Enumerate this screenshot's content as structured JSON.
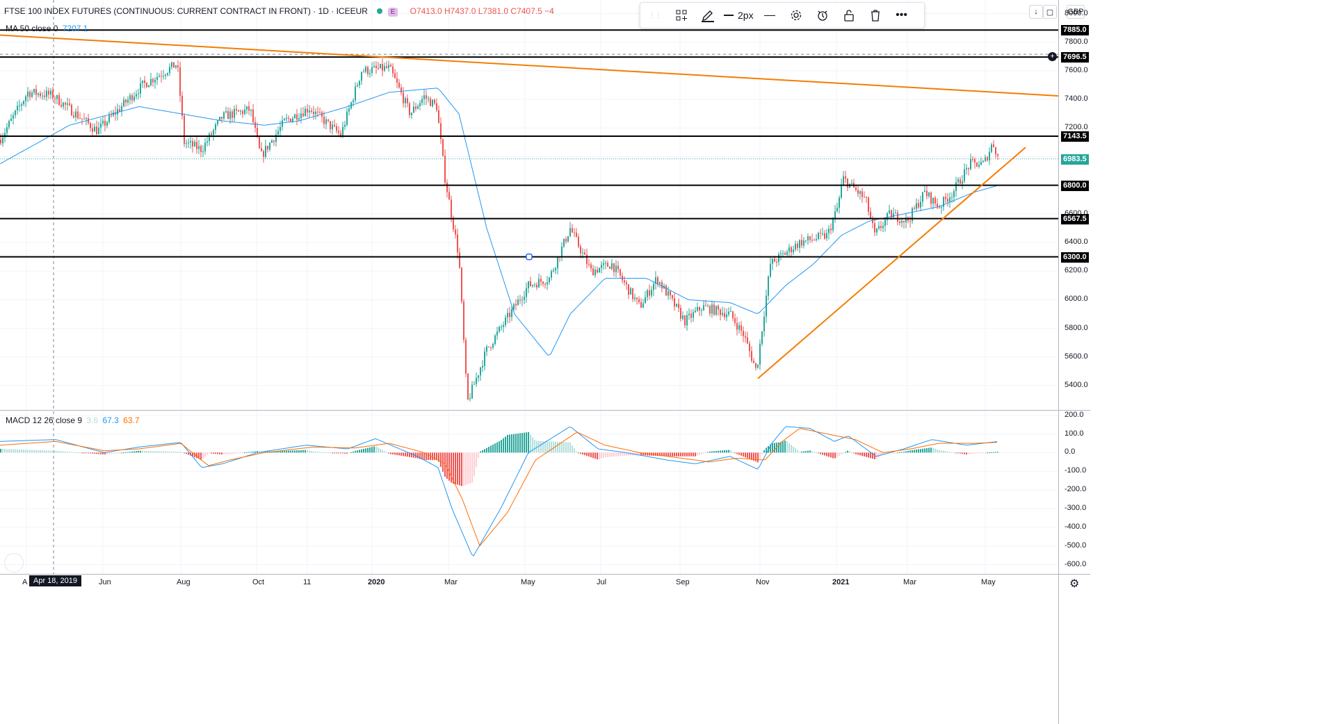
{
  "legend": {
    "symbol": "FTSE 100 INDEX FUTURES (CONTINUOUS: CURRENT CONTRACT IN FRONT) · 1D · ICEEUR",
    "badge": "E",
    "ohlc": "O7413.0 H7437.0 L7381.0 C7407.5 −4",
    "ma_label": "MA 50 close 0",
    "ma_value": "7207.1",
    "macd_label": "MACD 12 26 close 9",
    "macd_hist": "3.6",
    "macd_line": "67.3",
    "macd_signal": "63.7"
  },
  "toolbar": {
    "width_label": "2px",
    "icons": [
      "drag-handle-icon",
      "templates-icon",
      "pencil-icon",
      "line-width-icon",
      "line-style-icon",
      "settings-icon",
      "alert-icon",
      "lock-icon",
      "trash-icon",
      "more-icon"
    ]
  },
  "currency": "GBP",
  "price_axis": {
    "ticks": [
      "8000.0",
      "7800.0",
      "7600.0",
      "7400.0",
      "7200.0",
      "6600.0",
      "6400.0",
      "6200.0",
      "6000.0",
      "5800.0",
      "5600.0",
      "5400.0"
    ],
    "tick_values": [
      8000,
      7800,
      7600,
      7400,
      7200,
      6600,
      6400,
      6200,
      6000,
      5800,
      5600,
      5400
    ],
    "levels": [
      {
        "label": "7885.0",
        "value": 7885
      },
      {
        "label": "7696.5",
        "value": 7696.5
      },
      {
        "label": "7143.5",
        "value": 7143.5
      },
      {
        "label": "6800.0",
        "value": 6800
      },
      {
        "label": "6567.5",
        "value": 6567.5
      },
      {
        "label": "6300.0",
        "value": 6300
      }
    ],
    "last_price": {
      "label": "6983.5",
      "value": 6983.5
    }
  },
  "macd_axis": {
    "ticks": [
      "200.0",
      "100.0",
      "0.0",
      "-100.0",
      "-200.0",
      "-300.0",
      "-400.0",
      "-500.0",
      "-600.0"
    ],
    "tick_values": [
      200,
      100,
      0,
      -100,
      -200,
      -300,
      -400,
      -500,
      -600
    ]
  },
  "time_axis": {
    "labels": [
      "A",
      "Jun",
      "Aug",
      "Oct",
      "11",
      "2020",
      "Mar",
      "May",
      "Jul",
      "Sep",
      "Nov",
      "2021",
      "Mar",
      "May"
    ],
    "crosshair_label": "Apr 18, 2019"
  },
  "colors": {
    "up": "#26a69a",
    "down": "#ef5350",
    "ma": "#2196f3",
    "trend": "#f57c00",
    "macd_line": "#2196f3",
    "signal_line": "#ff6d00",
    "level": "#000000",
    "last": "#26a69a"
  },
  "chart_data": {
    "type": "candlestick",
    "price_range": [
      5230,
      8095
    ],
    "macd_range": [
      -650,
      225
    ],
    "trend_lines": [
      {
        "from": [
          "2019-03",
          "7850"
        ],
        "to": [
          "2021-05",
          "7420"
        ]
      },
      {
        "from": [
          "2020-10",
          "5450"
        ],
        "to": [
          "2021-05",
          "7065"
        ]
      }
    ],
    "anchors": [
      [
        0,
        7120
      ],
      [
        40,
        7450
      ],
      [
        75,
        7430
      ],
      [
        140,
        7180
      ],
      [
        205,
        7500
      ],
      [
        255,
        7650
      ],
      [
        265,
        7100
      ],
      [
        290,
        7050
      ],
      [
        320,
        7280
      ],
      [
        360,
        7330
      ],
      [
        375,
        7000
      ],
      [
        410,
        7250
      ],
      [
        445,
        7340
      ],
      [
        490,
        7150
      ],
      [
        520,
        7600
      ],
      [
        560,
        7620
      ],
      [
        590,
        7300
      ],
      [
        610,
        7420
      ],
      [
        628,
        7350
      ],
      [
        640,
        6850
      ],
      [
        660,
        6300
      ],
      [
        672,
        5280
      ],
      [
        700,
        5650
      ],
      [
        760,
        6100
      ],
      [
        790,
        6150
      ],
      [
        820,
        6500
      ],
      [
        850,
        6200
      ],
      [
        880,
        6250
      ],
      [
        920,
        5950
      ],
      [
        945,
        6150
      ],
      [
        985,
        5850
      ],
      [
        1010,
        5950
      ],
      [
        1050,
        5900
      ],
      [
        1070,
        5750
      ],
      [
        1088,
        5500
      ],
      [
        1108,
        6250
      ],
      [
        1150,
        6400
      ],
      [
        1190,
        6450
      ],
      [
        1205,
        6650
      ],
      [
        1212,
        6850
      ],
      [
        1245,
        6700
      ],
      [
        1258,
        6450
      ],
      [
        1280,
        6600
      ],
      [
        1305,
        6550
      ],
      [
        1330,
        6750
      ],
      [
        1350,
        6650
      ],
      [
        1370,
        6750
      ],
      [
        1395,
        6950
      ],
      [
        1415,
        6950
      ],
      [
        1428,
        7100
      ],
      [
        1436,
        6985
      ]
    ],
    "ma_anchors": [
      [
        0,
        6950
      ],
      [
        100,
        7220
      ],
      [
        200,
        7350
      ],
      [
        260,
        7300
      ],
      [
        320,
        7250
      ],
      [
        380,
        7220
      ],
      [
        430,
        7250
      ],
      [
        500,
        7350
      ],
      [
        560,
        7450
      ],
      [
        630,
        7480
      ],
      [
        660,
        7300
      ],
      [
        700,
        6500
      ],
      [
        740,
        5900
      ],
      [
        790,
        5600
      ],
      [
        820,
        5900
      ],
      [
        870,
        6150
      ],
      [
        930,
        6150
      ],
      [
        990,
        6000
      ],
      [
        1050,
        5980
      ],
      [
        1090,
        5900
      ],
      [
        1130,
        6100
      ],
      [
        1170,
        6250
      ],
      [
        1210,
        6450
      ],
      [
        1250,
        6550
      ],
      [
        1300,
        6600
      ],
      [
        1350,
        6650
      ],
      [
        1400,
        6750
      ],
      [
        1436,
        6800
      ]
    ],
    "macd_anchors": [
      [
        0,
        60
      ],
      [
        80,
        70
      ],
      [
        150,
        0
      ],
      [
        200,
        30
      ],
      [
        260,
        55
      ],
      [
        290,
        -80
      ],
      [
        320,
        -60
      ],
      [
        370,
        0
      ],
      [
        440,
        40
      ],
      [
        500,
        20
      ],
      [
        540,
        75
      ],
      [
        600,
        -20
      ],
      [
        630,
        -80
      ],
      [
        650,
        -300
      ],
      [
        680,
        -560
      ],
      [
        720,
        -300
      ],
      [
        760,
        0
      ],
      [
        820,
        140
      ],
      [
        860,
        20
      ],
      [
        900,
        0
      ],
      [
        960,
        -40
      ],
      [
        1000,
        -60
      ],
      [
        1050,
        -20
      ],
      [
        1090,
        -90
      ],
      [
        1110,
        50
      ],
      [
        1130,
        140
      ],
      [
        1165,
        130
      ],
      [
        1200,
        60
      ],
      [
        1220,
        90
      ],
      [
        1260,
        -20
      ],
      [
        1300,
        20
      ],
      [
        1340,
        70
      ],
      [
        1390,
        40
      ],
      [
        1436,
        60
      ]
    ],
    "signal_anchors": [
      [
        0,
        40
      ],
      [
        80,
        60
      ],
      [
        150,
        10
      ],
      [
        200,
        20
      ],
      [
        260,
        50
      ],
      [
        300,
        -70
      ],
      [
        330,
        -40
      ],
      [
        380,
        0
      ],
      [
        450,
        30
      ],
      [
        510,
        25
      ],
      [
        560,
        50
      ],
      [
        610,
        0
      ],
      [
        640,
        -60
      ],
      [
        665,
        -250
      ],
      [
        690,
        -500
      ],
      [
        730,
        -320
      ],
      [
        770,
        -40
      ],
      [
        830,
        110
      ],
      [
        870,
        40
      ],
      [
        920,
        0
      ],
      [
        980,
        -30
      ],
      [
        1020,
        -50
      ],
      [
        1060,
        -30
      ],
      [
        1100,
        -40
      ],
      [
        1125,
        60
      ],
      [
        1150,
        130
      ],
      [
        1190,
        100
      ],
      [
        1230,
        70
      ],
      [
        1270,
        0
      ],
      [
        1310,
        20
      ],
      [
        1350,
        50
      ],
      [
        1400,
        50
      ],
      [
        1436,
        55
      ]
    ]
  }
}
